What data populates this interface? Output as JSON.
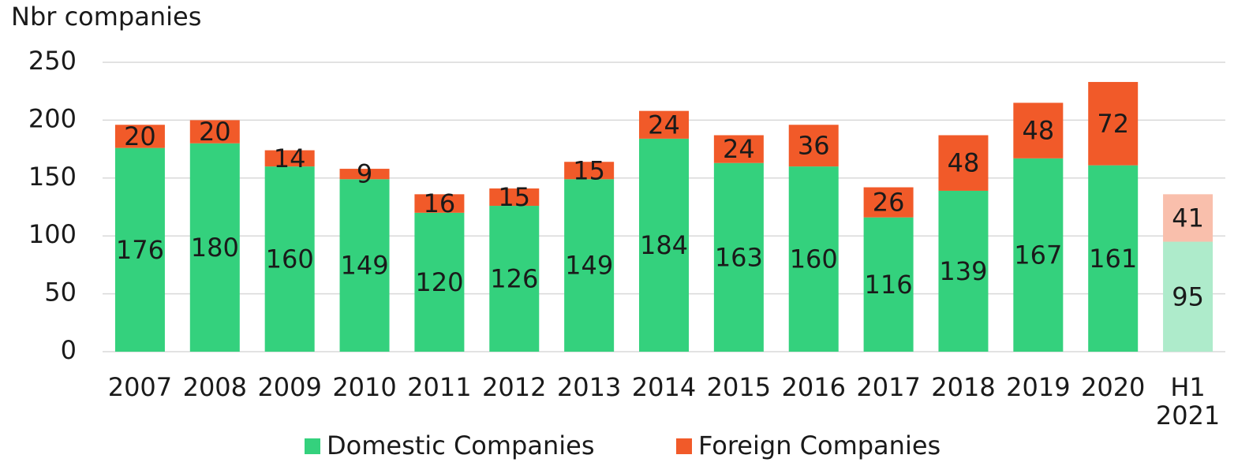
{
  "chart_data": {
    "type": "stacked_bar",
    "y_label": "Nbr companies",
    "categories": [
      "2007",
      "2008",
      "2009",
      "2010",
      "2011",
      "2012",
      "2013",
      "2014",
      "2015",
      "2016",
      "2017",
      "2018",
      "2019",
      "2020",
      "H1\n2021"
    ],
    "series": [
      {
        "name": "Domestic Companies",
        "color": "#34d17d",
        "colors": [
          "#34d17d",
          "#34d17d",
          "#34d17d",
          "#34d17d",
          "#34d17d",
          "#34d17d",
          "#34d17d",
          "#34d17d",
          "#34d17d",
          "#34d17d",
          "#34d17d",
          "#34d17d",
          "#34d17d",
          "#34d17d",
          "#aeebcb"
        ],
        "values": [
          176,
          180,
          160,
          149,
          120,
          126,
          149,
          184,
          163,
          160,
          116,
          139,
          167,
          161,
          95
        ]
      },
      {
        "name": "Foreign Companies",
        "color": "#f15a29",
        "colors": [
          "#f15a29",
          "#f15a29",
          "#f15a29",
          "#f15a29",
          "#f15a29",
          "#f15a29",
          "#f15a29",
          "#f15a29",
          "#f15a29",
          "#f15a29",
          "#f15a29",
          "#f15a29",
          "#f15a29",
          "#f15a29",
          "#f9bfac"
        ],
        "values": [
          20,
          20,
          14,
          9,
          16,
          15,
          15,
          24,
          24,
          36,
          26,
          48,
          48,
          72,
          41
        ]
      }
    ],
    "ylim": [
      0,
      250
    ],
    "yticks": [
      0,
      50,
      100,
      150,
      200,
      250
    ],
    "grid": true,
    "legend": "bottom"
  }
}
